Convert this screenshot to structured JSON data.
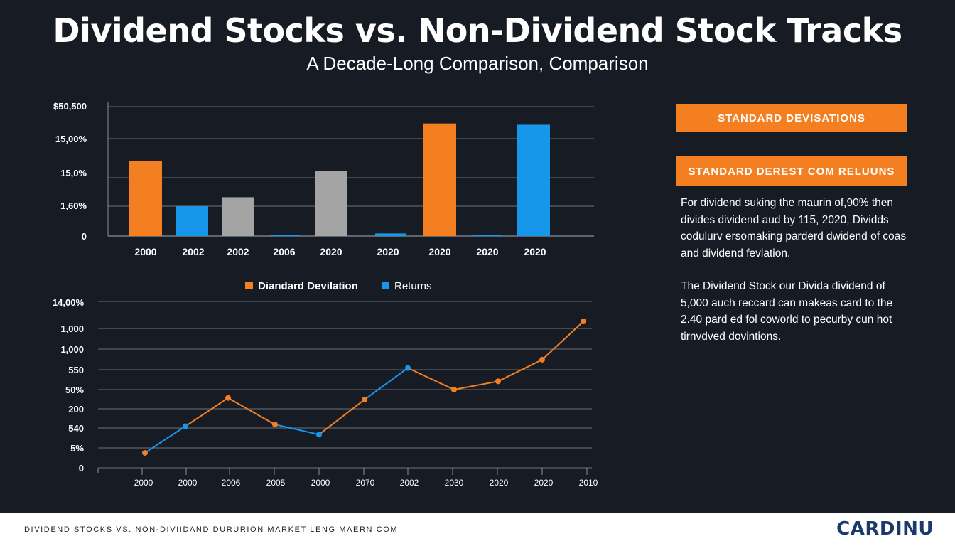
{
  "title": "Dividend Stocks vs. Non-Dividend Stock Tracks",
  "subtitle": "A Decade-Long Comparison, Comparison",
  "colors": {
    "orange": "#f47f20",
    "blue": "#1797ea",
    "gray": "#a4a4a4",
    "grid": "#8a8f99",
    "background": "#161b24"
  },
  "chart_data": [
    {
      "type": "bar",
      "title": "",
      "y_tick_labels": [
        "0",
        "1,60%",
        "15,0%",
        "15,00%",
        "$50,500"
      ],
      "ylim": [
        0,
        100
      ],
      "categories": [
        "2000",
        "2002",
        "2002",
        "2006",
        "2020",
        "2020",
        "2020",
        "2020",
        "2020"
      ],
      "bars": [
        {
          "color": "orange",
          "value": 58
        },
        {
          "color": "blue",
          "value": 23
        },
        {
          "color": "gray",
          "value": 30
        },
        {
          "color": "blue",
          "value": 1
        },
        {
          "color": "gray",
          "value": 50
        },
        {
          "color": "blue",
          "value": 2
        },
        {
          "color": "orange",
          "value": 87
        },
        {
          "color": "blue",
          "value": 1
        },
        {
          "color": "blue",
          "value": 86
        }
      ]
    },
    {
      "type": "line",
      "title": "",
      "legend": [
        {
          "label": "Diandard Devilation",
          "color": "orange"
        },
        {
          "label": "Returns",
          "color": "blue"
        }
      ],
      "y_tick_labels": [
        "0",
        "5%",
        "540",
        "200",
        "50%",
        "550",
        "1,000",
        "1,000",
        "14,00%"
      ],
      "ylim": [
        0,
        100
      ],
      "x_tick_labels": [
        "2000",
        "2000",
        "2006",
        "2005",
        "2000",
        "2070",
        "2002",
        "2030",
        "2020",
        "2020",
        "2010"
      ],
      "points": [
        {
          "y": 9,
          "color": "orange"
        },
        {
          "y": 25,
          "color": "blue"
        },
        {
          "y": 42,
          "color": "orange"
        },
        {
          "y": 26,
          "color": "orange"
        },
        {
          "y": 20,
          "color": "blue"
        },
        {
          "y": 41,
          "color": "orange"
        },
        {
          "y": 60,
          "color": "blue"
        },
        {
          "y": 47,
          "color": "orange"
        },
        {
          "y": 52,
          "color": "orange"
        },
        {
          "y": 65,
          "color": "orange"
        },
        {
          "y": 88,
          "color": "orange"
        }
      ]
    }
  ],
  "sidebar": {
    "header1": "STANDARD DEVISATIONS",
    "header2": "STANDARD DEREST COM RELUUNS",
    "paragraph1": "For dividend suking the maurin of,90% then divides dividend aud by 115, 2020, Dividds codulurv ersomaking parderd dwidend of coas and dividend fevlation.",
    "paragraph2": "The Dividend Stock our Divida dividend of 5,000 auch reccard can makeas card to the 2.40 pard ed fol coworld to pecurby cun hot tirnvdved dovintions."
  },
  "footer": {
    "text": "DIVIDEND STOCKS VS. NON-DIVIIDAND DURURION MARKET LENG MAERN.COM",
    "logo": "CARDINU"
  }
}
